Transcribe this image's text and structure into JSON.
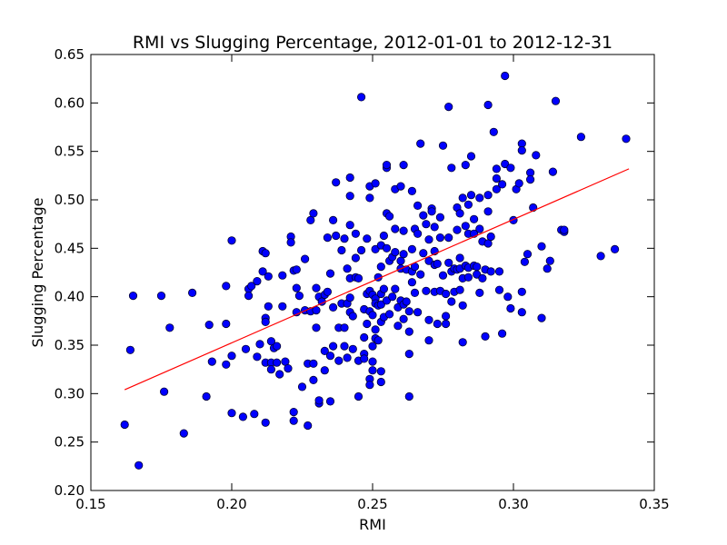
{
  "chart_data": {
    "type": "scatter",
    "title": "RMI vs Slugging Percentage, 2012-01-01 to 2012-12-31",
    "xlabel": "RMI",
    "ylabel": "Slugging Percentage",
    "xlim": [
      0.15,
      0.35
    ],
    "ylim": [
      0.2,
      0.65
    ],
    "xticks": [
      "0.15",
      "0.20",
      "0.25",
      "0.30",
      "0.35"
    ],
    "yticks": [
      "0.20",
      "0.25",
      "0.30",
      "0.35",
      "0.40",
      "0.45",
      "0.50",
      "0.55",
      "0.60",
      "0.65"
    ],
    "grid": false,
    "point_color": "#0000ff",
    "fit_color": "#ff0000",
    "fit_line": {
      "x": [
        0.162,
        0.341
      ],
      "y": [
        0.304,
        0.532
      ]
    },
    "series": [
      {
        "points": [
          [
            0.162,
            0.268
          ],
          [
            0.164,
            0.345
          ],
          [
            0.165,
            0.401
          ],
          [
            0.167,
            0.226
          ],
          [
            0.175,
            0.401
          ],
          [
            0.176,
            0.302
          ],
          [
            0.178,
            0.368
          ],
          [
            0.183,
            0.259
          ],
          [
            0.186,
            0.404
          ],
          [
            0.191,
            0.297
          ],
          [
            0.192,
            0.371
          ],
          [
            0.193,
            0.333
          ],
          [
            0.198,
            0.411
          ],
          [
            0.198,
            0.372
          ],
          [
            0.198,
            0.33
          ],
          [
            0.2,
            0.458
          ],
          [
            0.2,
            0.339
          ],
          [
            0.2,
            0.28
          ],
          [
            0.204,
            0.276
          ],
          [
            0.205,
            0.346
          ],
          [
            0.206,
            0.408
          ],
          [
            0.206,
            0.401
          ],
          [
            0.207,
            0.411
          ],
          [
            0.208,
            0.279
          ],
          [
            0.209,
            0.416
          ],
          [
            0.209,
            0.338
          ],
          [
            0.21,
            0.351
          ],
          [
            0.211,
            0.447
          ],
          [
            0.211,
            0.426
          ],
          [
            0.212,
            0.445
          ],
          [
            0.212,
            0.378
          ],
          [
            0.212,
            0.374
          ],
          [
            0.212,
            0.332
          ],
          [
            0.212,
            0.27
          ],
          [
            0.213,
            0.39
          ],
          [
            0.213,
            0.421
          ],
          [
            0.214,
            0.354
          ],
          [
            0.214,
            0.332
          ],
          [
            0.214,
            0.325
          ],
          [
            0.215,
            0.347
          ],
          [
            0.216,
            0.349
          ],
          [
            0.216,
            0.332
          ],
          [
            0.217,
            0.32
          ],
          [
            0.218,
            0.422
          ],
          [
            0.218,
            0.39
          ],
          [
            0.219,
            0.333
          ],
          [
            0.22,
            0.326
          ],
          [
            0.221,
            0.462
          ],
          [
            0.221,
            0.456
          ],
          [
            0.222,
            0.427
          ],
          [
            0.222,
            0.281
          ],
          [
            0.222,
            0.272
          ],
          [
            0.223,
            0.428
          ],
          [
            0.223,
            0.409
          ],
          [
            0.223,
            0.384
          ],
          [
            0.224,
            0.401
          ],
          [
            0.225,
            0.307
          ],
          [
            0.226,
            0.439
          ],
          [
            0.226,
            0.386
          ],
          [
            0.227,
            0.267
          ],
          [
            0.227,
            0.331
          ],
          [
            0.228,
            0.479
          ],
          [
            0.228,
            0.385
          ],
          [
            0.229,
            0.486
          ],
          [
            0.229,
            0.331
          ],
          [
            0.229,
            0.314
          ],
          [
            0.23,
            0.409
          ],
          [
            0.23,
            0.386
          ],
          [
            0.23,
            0.368
          ],
          [
            0.231,
            0.29
          ],
          [
            0.231,
            0.293
          ],
          [
            0.231,
            0.4
          ],
          [
            0.232,
            0.395
          ],
          [
            0.233,
            0.402
          ],
          [
            0.233,
            0.344
          ],
          [
            0.233,
            0.324
          ],
          [
            0.234,
            0.461
          ],
          [
            0.234,
            0.405
          ],
          [
            0.235,
            0.424
          ],
          [
            0.235,
            0.339
          ],
          [
            0.235,
            0.292
          ],
          [
            0.236,
            0.479
          ],
          [
            0.236,
            0.349
          ],
          [
            0.236,
            0.389
          ],
          [
            0.237,
            0.463
          ],
          [
            0.237,
            0.518
          ],
          [
            0.238,
            0.368
          ],
          [
            0.238,
            0.334
          ],
          [
            0.239,
            0.448
          ],
          [
            0.239,
            0.393
          ],
          [
            0.24,
            0.46
          ],
          [
            0.24,
            0.368
          ],
          [
            0.24,
            0.349
          ],
          [
            0.241,
            0.429
          ],
          [
            0.241,
            0.393
          ],
          [
            0.241,
            0.337
          ],
          [
            0.242,
            0.523
          ],
          [
            0.242,
            0.504
          ],
          [
            0.242,
            0.474
          ],
          [
            0.242,
            0.419
          ],
          [
            0.242,
            0.399
          ],
          [
            0.242,
            0.384
          ],
          [
            0.243,
            0.346
          ],
          [
            0.243,
            0.38
          ],
          [
            0.244,
            0.465
          ],
          [
            0.244,
            0.44
          ],
          [
            0.244,
            0.42
          ],
          [
            0.245,
            0.419
          ],
          [
            0.245,
            0.334
          ],
          [
            0.245,
            0.297
          ],
          [
            0.246,
            0.606
          ],
          [
            0.246,
            0.448
          ],
          [
            0.247,
            0.387
          ],
          [
            0.247,
            0.358
          ],
          [
            0.247,
            0.341
          ],
          [
            0.247,
            0.336
          ],
          [
            0.248,
            0.46
          ],
          [
            0.248,
            0.403
          ],
          [
            0.248,
            0.372
          ],
          [
            0.249,
            0.514
          ],
          [
            0.249,
            0.502
          ],
          [
            0.249,
            0.406
          ],
          [
            0.249,
            0.385
          ],
          [
            0.249,
            0.315
          ],
          [
            0.249,
            0.309
          ],
          [
            0.25,
            0.402
          ],
          [
            0.25,
            0.381
          ],
          [
            0.25,
            0.349
          ],
          [
            0.25,
            0.333
          ],
          [
            0.25,
            0.324
          ],
          [
            0.251,
            0.517
          ],
          [
            0.251,
            0.449
          ],
          [
            0.251,
            0.398
          ],
          [
            0.251,
            0.393
          ],
          [
            0.251,
            0.366
          ],
          [
            0.251,
            0.357
          ],
          [
            0.252,
            0.42
          ],
          [
            0.252,
            0.391
          ],
          [
            0.252,
            0.355
          ],
          [
            0.253,
            0.453
          ],
          [
            0.253,
            0.431
          ],
          [
            0.253,
            0.403
          ],
          [
            0.253,
            0.392
          ],
          [
            0.253,
            0.374
          ],
          [
            0.253,
            0.323
          ],
          [
            0.253,
            0.312
          ],
          [
            0.254,
            0.463
          ],
          [
            0.254,
            0.408
          ],
          [
            0.254,
            0.379
          ],
          [
            0.255,
            0.533
          ],
          [
            0.255,
            0.536
          ],
          [
            0.255,
            0.486
          ],
          [
            0.255,
            0.45
          ],
          [
            0.255,
            0.396
          ],
          [
            0.256,
            0.483
          ],
          [
            0.256,
            0.437
          ],
          [
            0.256,
            0.382
          ],
          [
            0.257,
            0.441
          ],
          [
            0.257,
            0.4
          ],
          [
            0.258,
            0.511
          ],
          [
            0.258,
            0.47
          ],
          [
            0.258,
            0.446
          ],
          [
            0.258,
            0.408
          ],
          [
            0.259,
            0.389
          ],
          [
            0.259,
            0.37
          ],
          [
            0.26,
            0.514
          ],
          [
            0.26,
            0.437
          ],
          [
            0.26,
            0.429
          ],
          [
            0.26,
            0.396
          ],
          [
            0.261,
            0.536
          ],
          [
            0.261,
            0.468
          ],
          [
            0.261,
            0.444
          ],
          [
            0.261,
            0.392
          ],
          [
            0.261,
            0.377
          ],
          [
            0.262,
            0.428
          ],
          [
            0.262,
            0.395
          ],
          [
            0.263,
            0.385
          ],
          [
            0.263,
            0.364
          ],
          [
            0.263,
            0.341
          ],
          [
            0.263,
            0.297
          ],
          [
            0.264,
            0.509
          ],
          [
            0.264,
            0.449
          ],
          [
            0.264,
            0.426
          ],
          [
            0.264,
            0.415
          ],
          [
            0.265,
            0.47
          ],
          [
            0.265,
            0.431
          ],
          [
            0.265,
            0.404
          ],
          [
            0.266,
            0.494
          ],
          [
            0.266,
            0.465
          ],
          [
            0.266,
            0.384
          ],
          [
            0.267,
            0.558
          ],
          [
            0.267,
            0.423
          ],
          [
            0.268,
            0.484
          ],
          [
            0.268,
            0.445
          ],
          [
            0.269,
            0.475
          ],
          [
            0.269,
            0.406
          ],
          [
            0.27,
            0.459
          ],
          [
            0.27,
            0.437
          ],
          [
            0.27,
            0.376
          ],
          [
            0.27,
            0.355
          ],
          [
            0.271,
            0.491
          ],
          [
            0.271,
            0.488
          ],
          [
            0.272,
            0.472
          ],
          [
            0.272,
            0.447
          ],
          [
            0.272,
            0.433
          ],
          [
            0.272,
            0.405
          ],
          [
            0.273,
            0.434
          ],
          [
            0.273,
            0.372
          ],
          [
            0.274,
            0.482
          ],
          [
            0.274,
            0.461
          ],
          [
            0.274,
            0.406
          ],
          [
            0.275,
            0.556
          ],
          [
            0.275,
            0.422
          ],
          [
            0.276,
            0.403
          ],
          [
            0.276,
            0.38
          ],
          [
            0.276,
            0.372
          ],
          [
            0.277,
            0.596
          ],
          [
            0.277,
            0.461
          ],
          [
            0.277,
            0.435
          ],
          [
            0.278,
            0.533
          ],
          [
            0.278,
            0.426
          ],
          [
            0.278,
            0.395
          ],
          [
            0.279,
            0.429
          ],
          [
            0.279,
            0.405
          ],
          [
            0.28,
            0.492
          ],
          [
            0.28,
            0.469
          ],
          [
            0.28,
            0.428
          ],
          [
            0.281,
            0.486
          ],
          [
            0.281,
            0.44
          ],
          [
            0.281,
            0.429
          ],
          [
            0.281,
            0.407
          ],
          [
            0.282,
            0.502
          ],
          [
            0.282,
            0.419
          ],
          [
            0.282,
            0.391
          ],
          [
            0.282,
            0.353
          ],
          [
            0.283,
            0.536
          ],
          [
            0.283,
            0.473
          ],
          [
            0.283,
            0.432
          ],
          [
            0.284,
            0.495
          ],
          [
            0.284,
            0.465
          ],
          [
            0.284,
            0.43
          ],
          [
            0.284,
            0.42
          ],
          [
            0.285,
            0.545
          ],
          [
            0.285,
            0.505
          ],
          [
            0.286,
            0.48
          ],
          [
            0.286,
            0.465
          ],
          [
            0.286,
            0.432
          ],
          [
            0.287,
            0.423
          ],
          [
            0.287,
            0.431
          ],
          [
            0.288,
            0.502
          ],
          [
            0.288,
            0.47
          ],
          [
            0.288,
            0.404
          ],
          [
            0.289,
            0.419
          ],
          [
            0.289,
            0.457
          ],
          [
            0.29,
            0.428
          ],
          [
            0.29,
            0.359
          ],
          [
            0.291,
            0.598
          ],
          [
            0.291,
            0.505
          ],
          [
            0.291,
            0.488
          ],
          [
            0.291,
            0.455
          ],
          [
            0.292,
            0.462
          ],
          [
            0.292,
            0.426
          ],
          [
            0.293,
            0.57
          ],
          [
            0.294,
            0.532
          ],
          [
            0.294,
            0.522
          ],
          [
            0.294,
            0.511
          ],
          [
            0.295,
            0.407
          ],
          [
            0.295,
            0.426
          ],
          [
            0.296,
            0.362
          ],
          [
            0.296,
            0.516
          ],
          [
            0.297,
            0.628
          ],
          [
            0.297,
            0.537
          ],
          [
            0.298,
            0.4
          ],
          [
            0.299,
            0.533
          ],
          [
            0.299,
            0.388
          ],
          [
            0.3,
            0.479
          ],
          [
            0.301,
            0.511
          ],
          [
            0.302,
            0.517
          ],
          [
            0.303,
            0.558
          ],
          [
            0.303,
            0.551
          ],
          [
            0.303,
            0.405
          ],
          [
            0.303,
            0.384
          ],
          [
            0.304,
            0.436
          ],
          [
            0.305,
            0.444
          ],
          [
            0.306,
            0.528
          ],
          [
            0.306,
            0.521
          ],
          [
            0.307,
            0.492
          ],
          [
            0.308,
            0.546
          ],
          [
            0.31,
            0.452
          ],
          [
            0.31,
            0.378
          ],
          [
            0.312,
            0.429
          ],
          [
            0.313,
            0.437
          ],
          [
            0.314,
            0.529
          ],
          [
            0.315,
            0.602
          ],
          [
            0.317,
            0.469
          ],
          [
            0.318,
            0.467
          ],
          [
            0.318,
            0.469
          ],
          [
            0.324,
            0.565
          ],
          [
            0.331,
            0.442
          ],
          [
            0.336,
            0.449
          ],
          [
            0.34,
            0.563
          ]
        ]
      }
    ]
  }
}
